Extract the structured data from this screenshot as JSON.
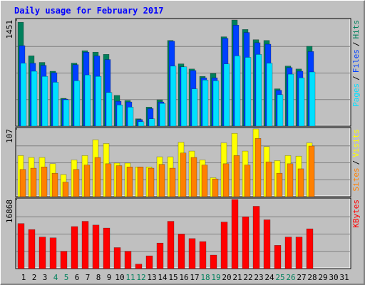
{
  "chart_data": [
    {
      "type": "bar",
      "title": "Daily usage for February 2017",
      "categories": [
        "1",
        "2",
        "3",
        "4",
        "5",
        "6",
        "7",
        "8",
        "9",
        "10",
        "11",
        "12",
        "13",
        "14",
        "15",
        "16",
        "17",
        "18",
        "19",
        "20",
        "21",
        "22",
        "23",
        "24",
        "25",
        "26",
        "27",
        "28",
        "29",
        "30",
        "31"
      ],
      "category_colors": [
        "#000000",
        "#000000",
        "#000000",
        "#00805c",
        "#00805c",
        "#000000",
        "#000000",
        "#000000",
        "#000000",
        "#000000",
        "#00805c",
        "#00805c",
        "#000000",
        "#000000",
        "#000000",
        "#000000",
        "#000000",
        "#00805c",
        "#00805c",
        "#000000",
        "#000000",
        "#000000",
        "#000000",
        "#000000",
        "#00805c",
        "#00805c",
        "#000000",
        "#000000",
        "#000000",
        "#000000",
        "#000000"
      ],
      "legend_separator": "/",
      "ylim": [
        0,
        1451
      ],
      "yticks": [
        1451
      ],
      "series": [
        {
          "name": "Pages",
          "color": "#00e0ff",
          "values": [
            860,
            750,
            680,
            600,
            360,
            620,
            700,
            680,
            460,
            290,
            260,
            60,
            100,
            310,
            820,
            810,
            510,
            630,
            620,
            850,
            960,
            940,
            980,
            860,
            430,
            710,
            660,
            740,
            null,
            null,
            null
          ]
        },
        {
          "name": "Files",
          "color": "#0040ff",
          "values": [
            1100,
            860,
            830,
            730,
            370,
            840,
            1010,
            960,
            910,
            340,
            330,
            90,
            240,
            330,
            1160,
            810,
            760,
            660,
            660,
            1200,
            1380,
            1280,
            1140,
            1120,
            490,
            800,
            750,
            1020,
            null,
            null,
            null
          ]
        },
        {
          "name": "Hits",
          "color": "#00805c",
          "values": [
            1420,
            961,
            871,
            750,
            380,
            861,
            1031,
            1011,
            981,
            420,
            350,
            100,
            260,
            360,
            1171,
            851,
            781,
            680,
            720,
            1221,
            1451,
            1321,
            1181,
            1171,
            510,
            821,
            781,
            1091,
            null,
            null,
            null
          ]
        }
      ]
    },
    {
      "type": "bar",
      "legend_separator": "/",
      "ylim": [
        0,
        107
      ],
      "yticks": [
        107
      ],
      "series": [
        {
          "name": "Sites",
          "color": "#ff8000",
          "values": [
            43,
            45,
            47,
            37,
            23,
            43,
            50,
            62,
            52,
            49,
            47,
            47,
            45,
            51,
            45,
            69,
            62,
            50,
            28,
            52,
            65,
            50,
            92,
            55,
            37,
            52,
            44,
            80,
            null,
            null,
            null
          ]
        },
        {
          "name": "Visits",
          "color": "#ffff00",
          "values": [
            65,
            62,
            62,
            52,
            35,
            58,
            65,
            90,
            84,
            53,
            53,
            47,
            47,
            63,
            63,
            86,
            72,
            58,
            30,
            85,
            100,
            72,
            107,
            79,
            57,
            65,
            64,
            85,
            null,
            null,
            null
          ]
        }
      ]
    },
    {
      "type": "bar",
      "ylim": [
        0,
        16868
      ],
      "yticks": [
        16868
      ],
      "series": [
        {
          "name": "KBytes",
          "color": "#ff0000",
          "values": [
            11001,
            9534,
            7701,
            7517,
            4217,
            10268,
            11551,
            10634,
            9901,
            5134,
            4217,
            1100,
            3117,
            6234,
            11551,
            8434,
            7334,
            6601,
            3300,
            11368,
            16868,
            12651,
            15218,
            11918,
            5684,
            7701,
            7701,
            9717,
            null,
            null,
            null
          ]
        }
      ]
    }
  ]
}
